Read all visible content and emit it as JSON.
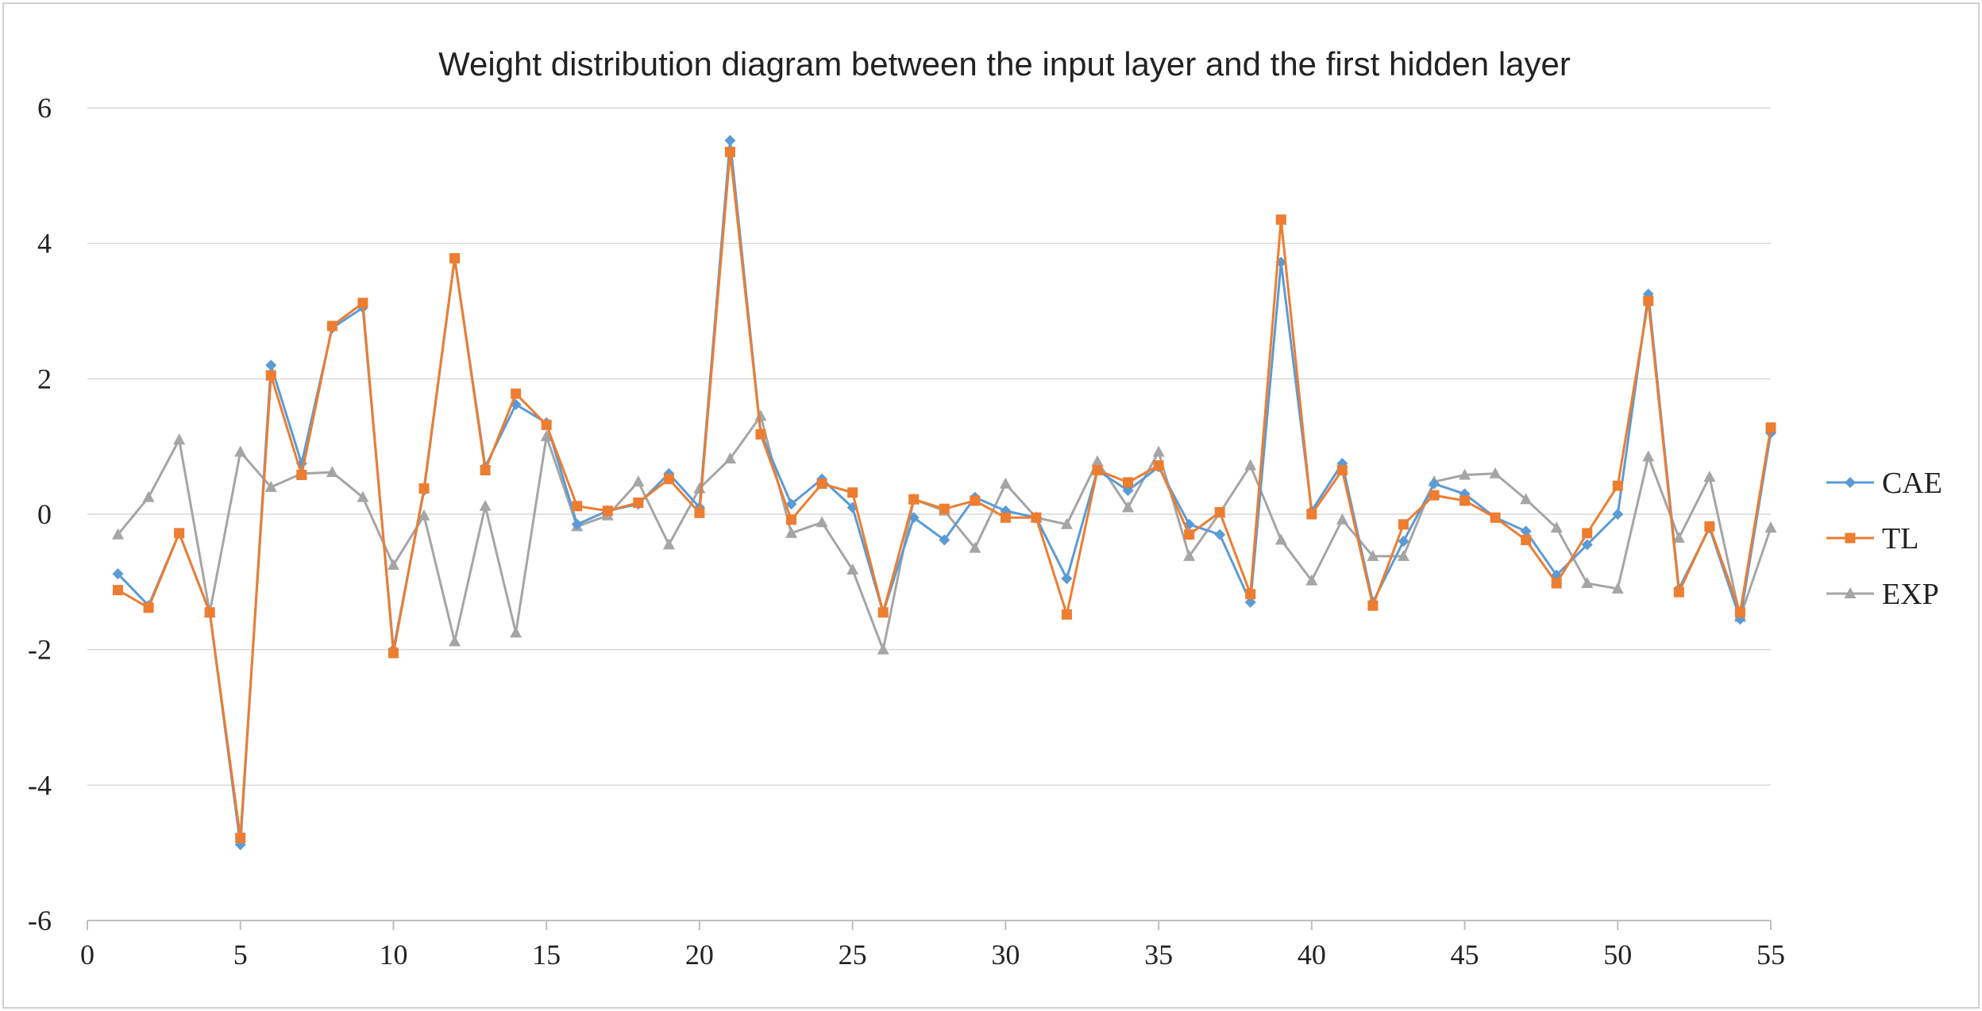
{
  "chart_data": {
    "type": "line",
    "title": "Weight distribution diagram between the input layer and the first hidden layer",
    "xlabel": "",
    "ylabel": "",
    "xlim": [
      0,
      55
    ],
    "ylim": [
      -6,
      6
    ],
    "x_ticks": [
      "0",
      "5",
      "10",
      "15",
      "20",
      "25",
      "30",
      "35",
      "40",
      "45",
      "50",
      "55"
    ],
    "y_ticks": [
      "6",
      "4",
      "2",
      "0",
      "-2",
      "-4",
      "-6"
    ],
    "grid": true,
    "legend_position": "right",
    "x": [
      1,
      2,
      3,
      4,
      5,
      6,
      7,
      8,
      9,
      10,
      11,
      12,
      13,
      14,
      15,
      16,
      17,
      18,
      19,
      20,
      21,
      22,
      23,
      24,
      25,
      26,
      27,
      28,
      29,
      30,
      31,
      32,
      33,
      34,
      35,
      36,
      37,
      38,
      39,
      40,
      41,
      42,
      43,
      44,
      45,
      46,
      47,
      48,
      49,
      50,
      51,
      52,
      53,
      54,
      55
    ],
    "series": [
      {
        "name": "CAE",
        "color": "#5b9bd5",
        "marker": "diamond",
        "values": [
          -0.88,
          -1.35,
          -0.28,
          -1.45,
          -4.88,
          2.2,
          0.75,
          2.75,
          3.05,
          -2.0,
          0.35,
          3.78,
          0.7,
          1.62,
          1.35,
          -0.15,
          0.05,
          0.15,
          0.6,
          0.1,
          5.52,
          1.2,
          0.15,
          0.52,
          0.1,
          -1.45,
          -0.05,
          -0.38,
          0.25,
          0.05,
          -0.05,
          -0.95,
          0.65,
          0.35,
          0.7,
          -0.15,
          -0.3,
          -1.3,
          3.72,
          0.05,
          0.75,
          -1.3,
          -0.4,
          0.45,
          0.3,
          -0.05,
          -0.25,
          -0.9,
          -0.45,
          0.0,
          3.25,
          -1.1,
          -0.2,
          -1.55,
          1.2
        ]
      },
      {
        "name": "TL",
        "color": "#ed7d31",
        "marker": "square",
        "values": [
          -1.12,
          -1.38,
          -0.28,
          -1.45,
          -4.78,
          2.05,
          0.58,
          2.78,
          3.12,
          -2.05,
          0.38,
          3.78,
          0.65,
          1.78,
          1.32,
          0.12,
          0.05,
          0.17,
          0.52,
          0.02,
          5.35,
          1.18,
          -0.08,
          0.45,
          0.32,
          -1.45,
          0.22,
          0.08,
          0.2,
          -0.05,
          -0.05,
          -1.48,
          0.65,
          0.47,
          0.72,
          -0.3,
          0.03,
          -1.18,
          4.35,
          0.0,
          0.65,
          -1.35,
          -0.15,
          0.28,
          0.2,
          -0.05,
          -0.38,
          -1.02,
          -0.28,
          0.42,
          3.15,
          -1.15,
          -0.18,
          -1.45,
          1.28
        ]
      },
      {
        "name": "EXP",
        "color": "#a5a5a5",
        "marker": "triangle",
        "values": [
          -0.3,
          0.25,
          1.1,
          -1.45,
          0.92,
          0.4,
          0.6,
          0.62,
          0.25,
          -0.75,
          -0.02,
          -1.88,
          0.12,
          -1.75,
          1.15,
          -0.18,
          -0.02,
          0.48,
          -0.45,
          0.38,
          0.82,
          1.45,
          -0.28,
          -0.12,
          -0.82,
          -2.0,
          0.22,
          0.05,
          -0.5,
          0.45,
          -0.05,
          -0.15,
          0.78,
          0.1,
          0.92,
          -0.62,
          0.02,
          0.72,
          -0.38,
          -0.98,
          -0.08,
          -0.62,
          -0.62,
          0.48,
          0.58,
          0.6,
          0.22,
          -0.2,
          -1.02,
          -1.1,
          0.85,
          -0.35,
          0.55,
          -1.52,
          -0.2
        ]
      }
    ]
  }
}
